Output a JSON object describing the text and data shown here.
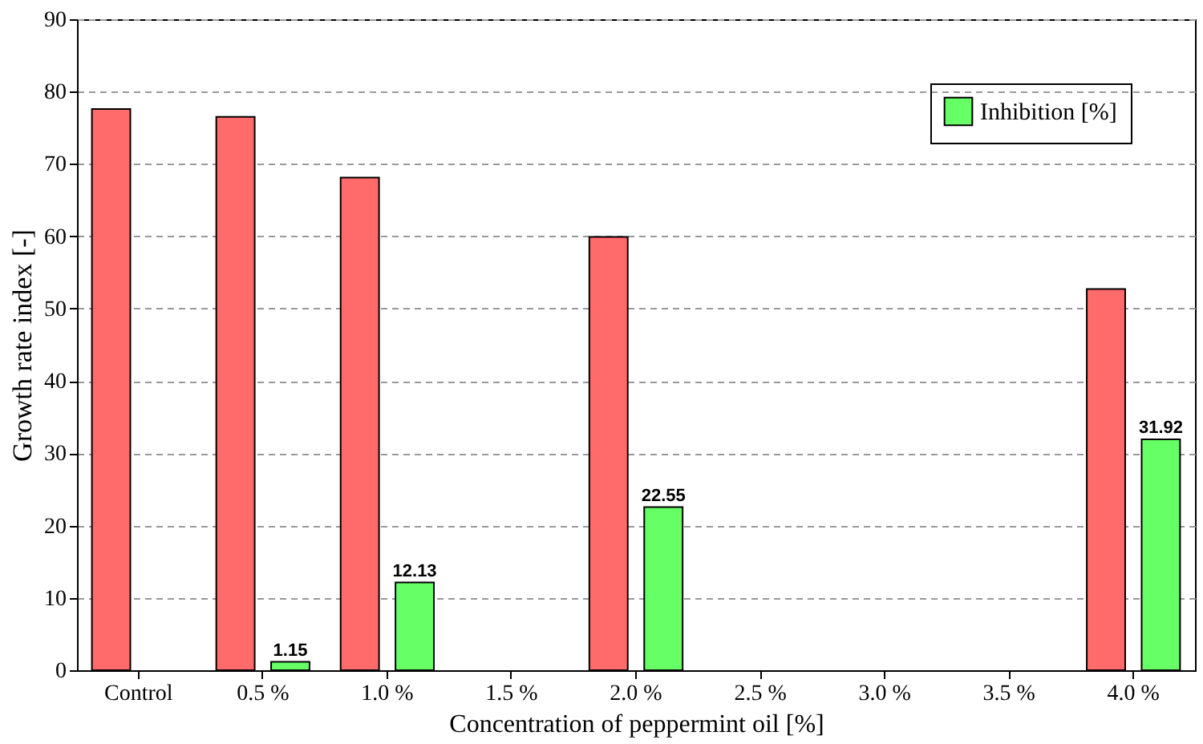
{
  "chart_data": {
    "type": "bar",
    "xlabel": "Concentration of peppermint oil [%]",
    "ylabel": "Growth rate index  [-]",
    "categories": [
      "Control",
      "0.5 %",
      "1.0 %",
      "1.5 %",
      "2.0 %",
      "2.5 %",
      "3.0 %",
      "3.5 %",
      "4.0 %"
    ],
    "series": [
      {
        "color": "#ff6a6a",
        "values": [
          77.6,
          76.5,
          68.1,
          null,
          59.9,
          null,
          null,
          null,
          52.7
        ]
      },
      {
        "name": "Inhibition [%]",
        "color": "#66ff66",
        "values": [
          null,
          1.15,
          12.13,
          null,
          22.55,
          null,
          null,
          null,
          31.92
        ],
        "value_labels": [
          null,
          "1.15",
          "12.13",
          null,
          "22.55",
          null,
          null,
          null,
          "31.92"
        ]
      }
    ],
    "ylim": [
      0,
      90
    ],
    "yticks": [
      0,
      10,
      20,
      30,
      40,
      50,
      60,
      70,
      80,
      90
    ],
    "grid": "y",
    "legend": "top right"
  }
}
